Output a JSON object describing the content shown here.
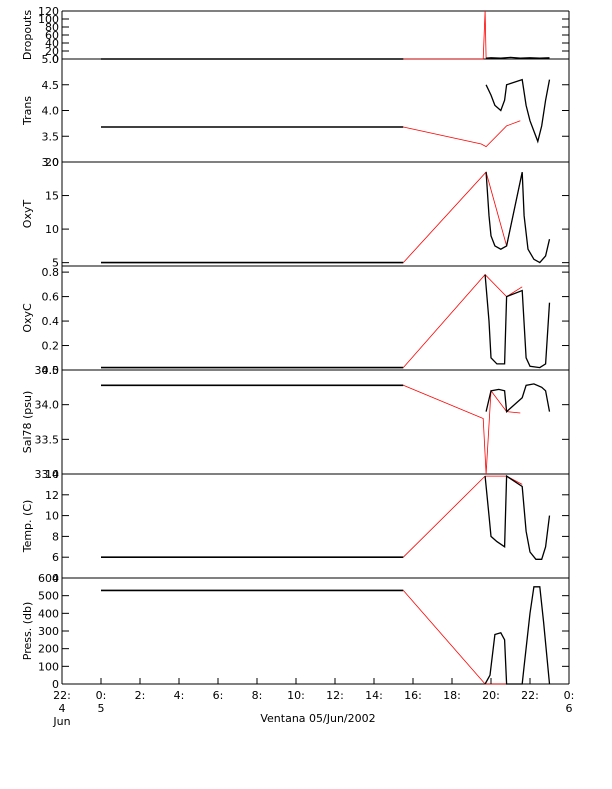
{
  "figure_title": "Ventana 05/Jun/2002",
  "colors": {
    "measured": "#000000",
    "interpolated": "#ff0000",
    "axis": "#000000"
  },
  "chart_data": [
    {
      "type": "line",
      "id": "dropouts",
      "ylabel": "Dropouts",
      "ylim": [
        0,
        120
      ],
      "yticks": [
        0,
        20,
        40,
        60,
        80,
        100,
        120
      ],
      "ytick_labels": [
        "0",
        "20",
        "40",
        "60",
        "80",
        "100",
        "120"
      ],
      "series": [
        {
          "color": "black",
          "points": [
            [
              0.0,
              0
            ],
            [
              15.5,
              0
            ]
          ]
        },
        {
          "color": "red",
          "points": [
            [
              15.5,
              0
            ],
            [
              19.6,
              0
            ],
            [
              19.7,
              120
            ],
            [
              19.75,
              2
            ],
            [
              20.0,
              2
            ]
          ]
        },
        {
          "color": "black",
          "points": [
            [
              19.75,
              2
            ],
            [
              20.0,
              3
            ],
            [
              20.5,
              2
            ],
            [
              21.0,
              4
            ],
            [
              21.5,
              2
            ],
            [
              22.0,
              3
            ],
            [
              22.5,
              2
            ],
            [
              23.0,
              3
            ]
          ]
        }
      ]
    },
    {
      "type": "line",
      "id": "trans",
      "ylabel": "Trans",
      "ylim": [
        3.0,
        5.0
      ],
      "yticks": [
        3.0,
        3.5,
        4.0,
        4.5,
        5.0
      ],
      "ytick_labels": [
        "3.0",
        "3.5",
        "4.0",
        "4.5",
        "5.0"
      ],
      "series": [
        {
          "color": "black",
          "points": [
            [
              0.0,
              3.68
            ],
            [
              15.5,
              3.68
            ]
          ]
        },
        {
          "color": "red",
          "points": [
            [
              15.5,
              3.68
            ],
            [
              19.5,
              3.35
            ],
            [
              19.75,
              3.3
            ],
            [
              20.8,
              3.7
            ],
            [
              21.5,
              3.8
            ]
          ]
        },
        {
          "color": "black",
          "points": [
            [
              19.75,
              4.5
            ],
            [
              20.0,
              4.3
            ],
            [
              20.2,
              4.1
            ],
            [
              20.5,
              4.0
            ],
            [
              20.7,
              4.2
            ],
            [
              20.8,
              4.5
            ],
            [
              21.6,
              4.6
            ],
            [
              21.8,
              4.1
            ],
            [
              22.0,
              3.8
            ],
            [
              22.2,
              3.6
            ],
            [
              22.4,
              3.4
            ],
            [
              22.6,
              3.7
            ],
            [
              22.8,
              4.2
            ],
            [
              23.0,
              4.6
            ]
          ]
        }
      ]
    },
    {
      "type": "line",
      "id": "oxyt",
      "ylabel": "OxyT",
      "ylim": [
        4.5,
        20
      ],
      "yticks": [
        5,
        10,
        15,
        20
      ],
      "ytick_labels": [
        "5",
        "10",
        "15",
        "20"
      ],
      "series": [
        {
          "color": "black",
          "points": [
            [
              0.0,
              5.0
            ],
            [
              15.5,
              5.0
            ]
          ]
        },
        {
          "color": "red",
          "points": [
            [
              15.5,
              5.0
            ],
            [
              19.75,
              18.5
            ],
            [
              20.8,
              7.5
            ],
            [
              21.6,
              18.5
            ]
          ]
        },
        {
          "color": "black",
          "points": [
            [
              19.75,
              18.5
            ],
            [
              19.9,
              12.0
            ],
            [
              20.0,
              9.0
            ],
            [
              20.2,
              7.5
            ],
            [
              20.5,
              7.0
            ],
            [
              20.8,
              7.5
            ],
            [
              21.6,
              18.5
            ],
            [
              21.7,
              12.0
            ],
            [
              21.9,
              7.0
            ],
            [
              22.2,
              5.5
            ],
            [
              22.5,
              5.0
            ],
            [
              22.8,
              6.0
            ],
            [
              23.0,
              8.5
            ]
          ]
        }
      ]
    },
    {
      "type": "line",
      "id": "oxyc",
      "ylabel": "OxyC",
      "ylim": [
        0.0,
        0.85
      ],
      "yticks": [
        0.0,
        0.2,
        0.4,
        0.6,
        0.8
      ],
      "ytick_labels": [
        "0.0",
        "0.2",
        "0.4",
        "0.6",
        "0.8"
      ],
      "series": [
        {
          "color": "black",
          "points": [
            [
              0.0,
              0.02
            ],
            [
              15.5,
              0.02
            ]
          ]
        },
        {
          "color": "red",
          "points": [
            [
              15.5,
              0.02
            ],
            [
              19.7,
              0.78
            ],
            [
              20.8,
              0.6
            ],
            [
              21.6,
              0.68
            ]
          ]
        },
        {
          "color": "black",
          "points": [
            [
              19.7,
              0.78
            ],
            [
              19.9,
              0.4
            ],
            [
              20.0,
              0.1
            ],
            [
              20.3,
              0.05
            ],
            [
              20.7,
              0.05
            ],
            [
              20.8,
              0.6
            ],
            [
              21.6,
              0.65
            ],
            [
              21.8,
              0.1
            ],
            [
              22.0,
              0.03
            ],
            [
              22.5,
              0.02
            ],
            [
              22.8,
              0.05
            ],
            [
              23.0,
              0.55
            ]
          ]
        }
      ]
    },
    {
      "type": "line",
      "id": "sal78",
      "ylabel": "Sal78 (psu)",
      "ylim": [
        33.0,
        34.5
      ],
      "yticks": [
        33.0,
        33.5,
        34.0,
        34.5
      ],
      "ytick_labels": [
        "33.0",
        "33.5",
        "34.0",
        "34.5"
      ],
      "series": [
        {
          "color": "black",
          "points": [
            [
              0.0,
              34.28
            ],
            [
              15.5,
              34.28
            ]
          ]
        },
        {
          "color": "red",
          "points": [
            [
              15.5,
              34.28
            ],
            [
              19.6,
              33.8
            ],
            [
              19.75,
              33.0
            ],
            [
              20.0,
              34.2
            ],
            [
              20.8,
              33.9
            ],
            [
              21.5,
              33.88
            ]
          ]
        },
        {
          "color": "black",
          "points": [
            [
              19.75,
              33.9
            ],
            [
              20.0,
              34.2
            ],
            [
              20.4,
              34.22
            ],
            [
              20.7,
              34.2
            ],
            [
              20.8,
              33.9
            ],
            [
              21.6,
              34.1
            ],
            [
              21.8,
              34.28
            ],
            [
              22.2,
              34.3
            ],
            [
              22.6,
              34.25
            ],
            [
              22.8,
              34.2
            ],
            [
              23.0,
              33.9
            ]
          ]
        }
      ]
    },
    {
      "type": "line",
      "id": "temp",
      "ylabel": "Temp. (C)",
      "ylim": [
        4,
        14
      ],
      "yticks": [
        4,
        6,
        8,
        10,
        12,
        14
      ],
      "ytick_labels": [
        "4",
        "6",
        "8",
        "10",
        "12",
        "14"
      ],
      "series": [
        {
          "color": "black",
          "points": [
            [
              0.0,
              6.0
            ],
            [
              15.5,
              6.0
            ]
          ]
        },
        {
          "color": "red",
          "points": [
            [
              15.5,
              6.0
            ],
            [
              19.7,
              13.8
            ],
            [
              20.8,
              13.8
            ],
            [
              21.6,
              13.0
            ]
          ]
        },
        {
          "color": "black",
          "points": [
            [
              19.7,
              13.8
            ],
            [
              19.9,
              10.0
            ],
            [
              20.0,
              8.0
            ],
            [
              20.3,
              7.5
            ],
            [
              20.7,
              7.0
            ],
            [
              20.8,
              13.8
            ],
            [
              21.6,
              12.8
            ],
            [
              21.8,
              8.5
            ],
            [
              22.0,
              6.5
            ],
            [
              22.3,
              5.8
            ],
            [
              22.6,
              5.8
            ],
            [
              22.8,
              7.0
            ],
            [
              23.0,
              10.0
            ]
          ]
        }
      ]
    },
    {
      "type": "line",
      "id": "press",
      "ylabel": "Press. (db)",
      "ylim": [
        0,
        600
      ],
      "yticks": [
        0,
        100,
        200,
        300,
        400,
        500,
        600
      ],
      "ytick_labels": [
        "0",
        "100",
        "200",
        "300",
        "400",
        "500",
        "600"
      ],
      "series": [
        {
          "color": "black",
          "points": [
            [
              0.0,
              530
            ],
            [
              15.5,
              530
            ]
          ]
        },
        {
          "color": "red",
          "points": [
            [
              15.5,
              530
            ],
            [
              19.7,
              0
            ],
            [
              20.8,
              0
            ],
            [
              21.6,
              0
            ]
          ]
        },
        {
          "color": "black",
          "points": [
            [
              19.7,
              0
            ],
            [
              19.95,
              50
            ],
            [
              20.2,
              280
            ],
            [
              20.5,
              290
            ],
            [
              20.7,
              250
            ],
            [
              20.8,
              0
            ],
            [
              21.6,
              0
            ],
            [
              21.7,
              100
            ],
            [
              22.0,
              400
            ],
            [
              22.2,
              550
            ],
            [
              22.5,
              550
            ],
            [
              22.7,
              350
            ],
            [
              23.0,
              0
            ]
          ]
        }
      ]
    }
  ],
  "x_axis": {
    "xlim": [
      -2,
      24
    ],
    "ticks": [
      -2,
      0,
      2,
      4,
      6,
      8,
      10,
      12,
      14,
      16,
      18,
      20,
      22,
      24
    ],
    "tick_labels": [
      "22:",
      "0:",
      "2:",
      "4:",
      "6:",
      "8:",
      "10:",
      "12:",
      "14:",
      "16:",
      "18:",
      "20:",
      "22:",
      "0:"
    ],
    "sub_labels": [
      {
        "x": -2,
        "lines": [
          "4",
          "Jun"
        ]
      },
      {
        "x": 0,
        "lines": [
          "5"
        ]
      },
      {
        "x": 24,
        "lines": [
          "6"
        ]
      }
    ]
  }
}
